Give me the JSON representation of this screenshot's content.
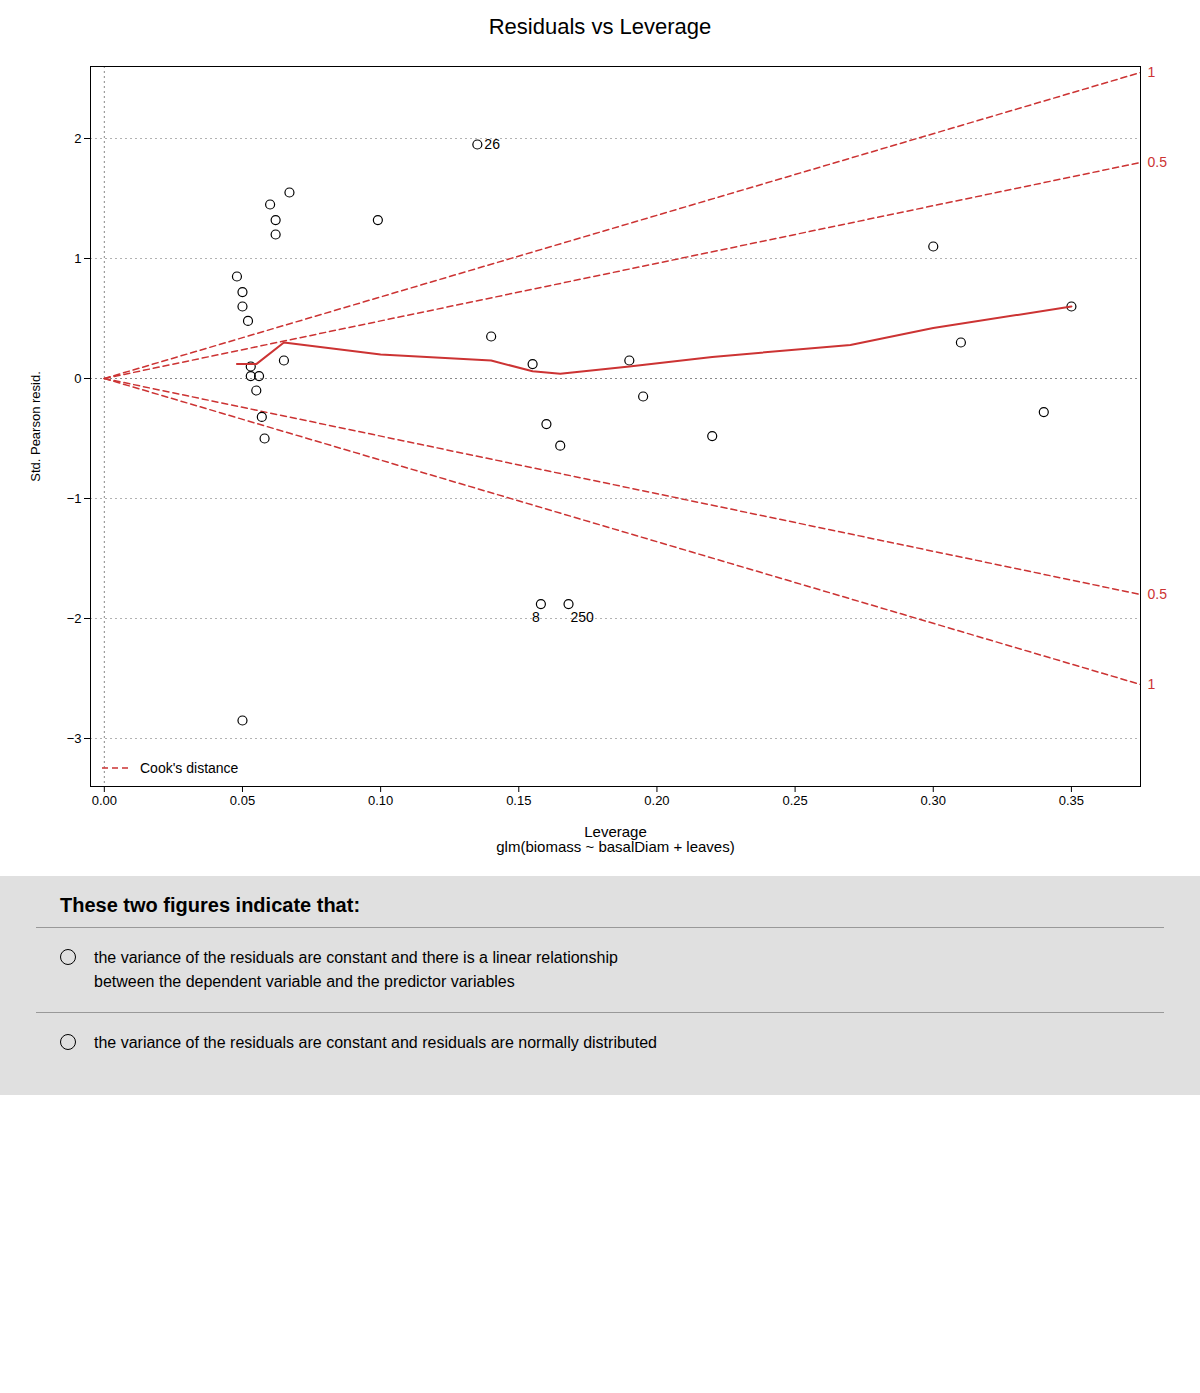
{
  "chart_data": {
    "type": "scatter",
    "title": "Residuals vs Leverage",
    "xlabel": "Leverage\nglm(biomass ~ basalDiam + leaves)",
    "ylabel": "Std. Pearson resid.",
    "xlim": [
      -0.005,
      0.375
    ],
    "ylim": [
      -3.4,
      2.6
    ],
    "xticks": [
      {
        "value": 0.0,
        "label": "0.00"
      },
      {
        "value": 0.05,
        "label": "0.05"
      },
      {
        "value": 0.1,
        "label": "0.10"
      },
      {
        "value": 0.15,
        "label": "0.15"
      },
      {
        "value": 0.2,
        "label": "0.20"
      },
      {
        "value": 0.25,
        "label": "0.25"
      },
      {
        "value": 0.3,
        "label": "0.30"
      },
      {
        "value": 0.35,
        "label": "0.35"
      }
    ],
    "yticks": [
      -3,
      -2,
      -1,
      0,
      1,
      2
    ],
    "grid": "y",
    "legend": "lower left",
    "reference_lines": {
      "x": [
        0.0
      ],
      "y": [
        0
      ]
    },
    "series": [
      {
        "name": "Cook's distance",
        "type": "line",
        "line_style": "dashed",
        "color": "#cc3333",
        "x": [
          0.0,
          0.375
        ],
        "values": [
          0.0,
          2.55
        ]
      },
      {
        "type": "line",
        "line_style": "dashed",
        "color": "#cc3333",
        "x": [
          0.0,
          0.375
        ],
        "values": [
          0.0,
          1.8
        ]
      },
      {
        "type": "line",
        "line_style": "dashed",
        "color": "#cc3333",
        "x": [
          0.0,
          0.375
        ],
        "values": [
          0.0,
          -1.8
        ]
      },
      {
        "type": "line",
        "line_style": "dashed",
        "color": "#cc3333",
        "x": [
          0.0,
          0.375
        ],
        "values": [
          0.0,
          -2.55
        ]
      },
      {
        "type": "scatter",
        "marker": "open circle",
        "color": "black",
        "x": [
          0.048,
          0.05,
          0.05,
          0.052,
          0.053,
          0.053,
          0.055,
          0.056,
          0.057,
          0.058,
          0.06,
          0.062,
          0.062,
          0.065,
          0.067,
          0.099,
          0.14,
          0.155,
          0.16,
          0.165,
          0.19,
          0.195,
          0.22,
          0.3,
          0.31,
          0.34,
          0.35,
          0.135,
          0.158,
          0.168,
          0.05
        ],
        "values": [
          0.85,
          0.72,
          0.6,
          0.48,
          0.1,
          0.02,
          -0.1,
          0.02,
          -0.32,
          -0.5,
          1.45,
          1.32,
          1.2,
          0.15,
          1.55,
          1.32,
          0.35,
          0.12,
          -0.38,
          -0.56,
          0.15,
          -0.15,
          -0.48,
          1.1,
          0.3,
          -0.28,
          0.6,
          1.95,
          -1.88,
          -1.88,
          -2.85
        ]
      },
      {
        "type": "line",
        "line_style": "solid",
        "color": "#cc3333",
        "x": [
          0.048,
          0.055,
          0.065,
          0.1,
          0.14,
          0.155,
          0.165,
          0.19,
          0.22,
          0.27,
          0.3,
          0.35
        ],
        "values": [
          0.12,
          0.12,
          0.3,
          0.2,
          0.15,
          0.06,
          0.04,
          0.1,
          0.18,
          0.28,
          0.42,
          0.6
        ]
      }
    ],
    "annotations": [
      {
        "text": "26",
        "x": 0.135,
        "y": 1.95,
        "position": "right"
      },
      {
        "text": "8",
        "x": 0.158,
        "y": -1.88,
        "position": "below-left"
      },
      {
        "text": "250",
        "x": 0.168,
        "y": -1.88,
        "position": "below-right"
      },
      {
        "text": "1",
        "x": 0.375,
        "y": 2.55,
        "position": "right",
        "color": "#cc3333"
      },
      {
        "text": "0.5",
        "x": 0.375,
        "y": 1.8,
        "position": "right",
        "color": "#cc3333"
      },
      {
        "text": "0.5",
        "x": 0.375,
        "y": -1.8,
        "position": "right",
        "color": "#cc3333"
      },
      {
        "text": "1",
        "x": 0.375,
        "y": -2.55,
        "position": "right",
        "color": "#cc3333"
      }
    ],
    "footer": {
      "title": "These two figures indicate that:",
      "options": [
        [
          "the variance of the residuals are constant and there is a linear relationship",
          "between the dependent variable and the predictor variables"
        ],
        [
          "the variance of the residuals are constant and residuals are normally distributed"
        ]
      ]
    }
  }
}
